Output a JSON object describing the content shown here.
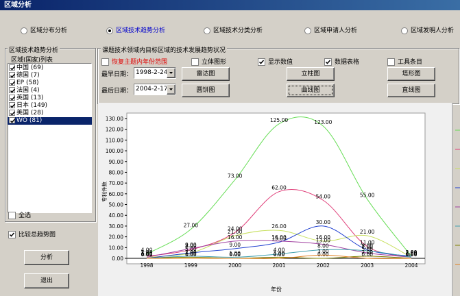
{
  "window": {
    "title": "区域分析"
  },
  "tabs": {
    "items": [
      "区域分布分析",
      "区域技术趋势分析",
      "区域技术分类分析",
      "区域申请人分析",
      "区域发明人分析"
    ],
    "selected": 1
  },
  "left": {
    "title": "区域技术趋势分析",
    "list_label": "区域(国家)列表",
    "items": [
      "中国 (69)",
      "德国 (7)",
      "EP (58)",
      "法国 (4)",
      "英国 (13)",
      "日本 (149)",
      "美国 (28)",
      "WO (81)"
    ],
    "selected": 7,
    "select_all": {
      "label": "全选",
      "checked": false
    },
    "compare": {
      "label": "比较总趋势图",
      "checked": true
    },
    "buttons": [
      "分析",
      "退出"
    ]
  },
  "right": {
    "title": "课题技术领域内目标区域的技术发展趋势状况",
    "options": [
      {
        "label": "恢复主题内年份范围",
        "checked": false
      },
      {
        "label": "立体图形",
        "checked": false
      },
      {
        "label": "显示数值",
        "checked": true
      },
      {
        "label": "数据表格",
        "checked": true
      },
      {
        "label": "工具条目",
        "checked": false
      }
    ],
    "earliest_label": "最早日期：",
    "earliest": "1998-2-24",
    "latest_label": "最后日期：",
    "latest": "2004-2-17",
    "buttons": [
      "雷达图",
      "立柱图",
      "塔形图",
      "圆饼图",
      "曲线图",
      "直线图"
    ]
  },
  "chart_data": {
    "type": "line",
    "smooth": true,
    "x_label": "年份",
    "y_label": "专利件数",
    "categories": [
      "1998",
      "1999",
      "2000",
      "2001",
      "2002",
      "2003",
      "2004"
    ],
    "ylim": [
      0,
      130
    ],
    "yticks": [
      {
        "value": 0,
        "label": "0.00"
      },
      {
        "value": 10,
        "label": "10.00"
      },
      {
        "value": 20,
        "label": "20.00"
      },
      {
        "value": 30,
        "label": "30.00"
      },
      {
        "value": 40,
        "label": "40.00"
      },
      {
        "value": 50,
        "label": "50.00"
      },
      {
        "value": 60,
        "label": "60.00"
      },
      {
        "value": 70,
        "label": "70.00"
      },
      {
        "value": 80,
        "label": "80.00"
      },
      {
        "value": 90,
        "label": "90.00"
      },
      {
        "value": 100,
        "label": "100.00"
      },
      {
        "value": 110,
        "label": "110.00"
      },
      {
        "value": 120,
        "label": "120.00"
      },
      {
        "value": 130,
        "label": "130.00"
      }
    ],
    "series": [
      {
        "color": "#66dd55",
        "values": [
          4,
          27,
          73,
          125,
          123,
          55,
          2
        ],
        "value_labels": [
          "4.00",
          "27.00",
          "73.00",
          "125.00",
          "123.00",
          "55.00",
          "2.00"
        ]
      },
      {
        "color": "#e0407a",
        "values": [
          2,
          8,
          24,
          62,
          54,
          11,
          1
        ],
        "value_labels": [
          "2.00",
          "8.00",
          "24.00",
          "62.00",
          "54.00",
          "11.00",
          "1.00"
        ]
      },
      {
        "color": "#c8e060",
        "values": [
          1,
          5,
          21,
          26,
          16,
          21,
          1
        ],
        "value_labels": [
          "1.00",
          "5.00",
          "21.00",
          "26.00",
          "16.00",
          "21.00",
          "1.00"
        ]
      },
      {
        "color": "#2040d0",
        "values": [
          0,
          5,
          9,
          15,
          30,
          8,
          2
        ],
        "value_labels": [
          "0.00",
          "5.00",
          "9.00",
          "15.00",
          "30.00",
          "8.00",
          "2.00"
        ]
      },
      {
        "color": "#a040a0",
        "values": [
          1,
          9,
          16,
          16,
          13,
          5,
          1
        ],
        "value_labels": [
          "1.00",
          "9.00",
          "16.00",
          "16.00",
          "13.00",
          "5.00",
          "1.00"
        ]
      },
      {
        "color": "#40a0b0",
        "values": [
          0,
          2,
          1,
          4,
          8,
          7,
          1
        ],
        "value_labels": [
          "0.00",
          "2.00",
          "1.00",
          "4.00",
          "8.00",
          "7.00",
          "1.00"
        ]
      },
      {
        "color": "#808000",
        "values": [
          0,
          1,
          0,
          1,
          0,
          2,
          0
        ],
        "value_labels": [
          "0.00",
          "1.00",
          "0.00",
          "1.00",
          "0.00",
          "2.00",
          "0.00"
        ]
      },
      {
        "color": "#e08020",
        "values": [
          0,
          0,
          0,
          0,
          3,
          0,
          0
        ],
        "value_labels": [
          "0.00",
          "0.00",
          "0.00",
          "0.00",
          "3.00",
          "0.00",
          "0.00"
        ]
      }
    ]
  }
}
